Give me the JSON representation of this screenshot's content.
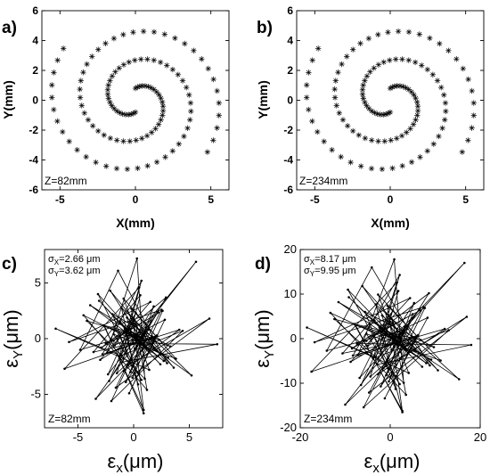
{
  "chart_data": [
    {
      "id": "a",
      "panel_label": "a)",
      "type": "scatter",
      "marker": "asterisk",
      "description": "double-arm spiral beam trajectory",
      "xlabel": "X(mm)",
      "ylabel": "Y(mm)",
      "xlim": [
        -6.2,
        6.2
      ],
      "ylim": [
        -6,
        6
      ],
      "xticks": [
        -5,
        0,
        5
      ],
      "yticks": [
        -6,
        -4,
        -2,
        0,
        2,
        4,
        6
      ],
      "annotation": "Z=82mm",
      "spiral": {
        "r_start": 0.8,
        "r_end": 5.9,
        "turns": 1.35,
        "points_per_arm": 58,
        "arms": 2
      }
    },
    {
      "id": "b",
      "panel_label": "b)",
      "type": "scatter",
      "marker": "asterisk",
      "description": "double-arm spiral beam trajectory",
      "xlabel": "X(mm)",
      "ylabel": "Y(mm)",
      "xlim": [
        -6.2,
        6.2
      ],
      "ylim": [
        -6,
        6
      ],
      "xticks": [
        -5,
        0,
        5
      ],
      "yticks": [
        -6,
        -4,
        -2,
        0,
        2,
        4,
        6
      ],
      "annotation": "Z=234mm",
      "spiral": {
        "r_start": 0.8,
        "r_end": 5.9,
        "turns": 1.35,
        "points_per_arm": 58,
        "arms": 2
      }
    },
    {
      "id": "c",
      "panel_label": "c)",
      "type": "line",
      "marker": "dot",
      "description": "random position error trace",
      "xlabel": "εx(μm)",
      "ylabel": "εY(μm)",
      "xlabel_main": "ε",
      "xlabel_sub": "x",
      "xlabel_unit": "(μm)",
      "ylabel_main": "ε",
      "ylabel_sub": "Y",
      "ylabel_unit": "(μm)",
      "xlim": [
        -8,
        8
      ],
      "ylim": [
        -8,
        8
      ],
      "xticks": [
        -5,
        0,
        5
      ],
      "yticks": [
        -5,
        0,
        5
      ],
      "sigma_x": "σX=2.66 μm",
      "sigma_y": "σY=3.62 μm",
      "sigma_x_main": "σ",
      "sigma_x_sub": "X",
      "sigma_x_value": "=2.66 μm",
      "sigma_y_main": "σ",
      "sigma_y_sub": "Y",
      "sigma_y_value": "=3.62 μm",
      "annotation": "Z=82mm",
      "n_points": 95,
      "x": [
        -1.2,
        2.4,
        -3.1,
        0.6,
        1.8,
        -2.2,
        -0.4,
        3.1,
        -4.5,
        1.2,
        0.2,
        -1.8,
        2.9,
        -0.9,
        4.1,
        -2.8,
        0.7,
        -1.5,
        1.9,
        -3.4,
        2.2,
        0.1,
        -0.6,
        3.6,
        -2.1,
        1.4,
        -0.2,
        5.2,
        -1.1,
        0.9,
        -2.6,
        1.6,
        -3.9,
        2.7,
        -0.8,
        0.4,
        -1.9,
        3.3,
        -4.2,
        1.0,
        0.3,
        -2.4,
        2.1,
        -0.5,
        6.8,
        -1.6,
        0.8,
        -3.0,
        1.5,
        -5.8,
        2.5,
        -0.3,
        1.1,
        -2.0,
        4.4,
        -1.3,
        0.5,
        -6.2,
        2.0,
        -0.7,
        1.7,
        -2.9,
        0.0,
        3.0,
        -1.4,
        -4.8,
        1.3,
        -0.1,
        2.6,
        -2.5,
        7.5,
        -1.0,
        0.6,
        -3.6,
        1.9,
        -0.4,
        2.8,
        -1.7,
        0.2,
        -2.3,
        5.6,
        -1.2,
        -7.0,
        1.4,
        -0.9,
        2.3,
        -2.7,
        0.9,
        -0.2,
        3.8,
        -1.8,
        0.7,
        -3.2,
        1.2,
        0.1
      ],
      "y": [
        1.5,
        -2.3,
        3.4,
        -0.6,
        2.9,
        -3.8,
        0.4,
        -1.7,
        2.1,
        -4.6,
        1.3,
        -0.2,
        3.7,
        -2.9,
        0.8,
        -1.4,
        5.2,
        -3.1,
        0.1,
        -5.4,
        2.4,
        -0.9,
        1.9,
        -2.6,
        4.3,
        -1.1,
        0.6,
        -3.3,
        2.8,
        -6.7,
        1.1,
        -0.5,
        3.0,
        -2.0,
        0.9,
        -4.1,
        2.2,
        -0.7,
        1.6,
        -3.6,
        7.2,
        -1.3,
        0.3,
        -2.4,
        1.8,
        -4.4,
        0.5,
        -1.9,
        3.3,
        -0.3,
        2.6,
        -3.0,
        1.0,
        -5.6,
        0.7,
        -1.6,
        4.6,
        -2.7,
        0.2,
        -3.9,
        2.0,
        -0.8,
        1.4,
        -2.2,
        6.1,
        -1.0,
        0.8,
        -3.5,
        2.5,
        -0.4,
        -0.5,
        -2.1,
        3.9,
        -1.2,
        0.0,
        -4.9,
        1.7,
        -0.6,
        2.3,
        -3.2,
        6.9,
        -1.5,
        0.9,
        -2.8,
        3.6,
        -0.1,
        1.2,
        -6.4,
        2.7,
        -1.8,
        0.4,
        -3.7,
        4.0,
        -0.9,
        1.6
      ]
    },
    {
      "id": "d",
      "panel_label": "d)",
      "type": "line",
      "marker": "dot",
      "description": "random position error trace",
      "xlabel": "εx(μm)",
      "ylabel": "εY(μm)",
      "xlabel_main": "ε",
      "xlabel_sub": "x",
      "xlabel_unit": "(μm)",
      "ylabel_main": "ε",
      "ylabel_sub": "Y",
      "ylabel_unit": "(μm)",
      "xlim": [
        -20,
        20
      ],
      "ylim": [
        -20,
        20
      ],
      "xticks": [
        -20,
        0,
        20
      ],
      "yticks": [
        -20,
        -10,
        0,
        10,
        20
      ],
      "sigma_x": "σX=8.17 μm",
      "sigma_y": "σY=9.95 μm",
      "sigma_x_main": "σ",
      "sigma_x_sub": "X",
      "sigma_x_value": "=8.17 μm",
      "sigma_y_main": "σ",
      "sigma_y_sub": "Y",
      "sigma_y_value": "=9.95 μm",
      "annotation": "Z=234mm",
      "n_points": 95,
      "x": [
        -3.5,
        7.1,
        -9.2,
        1.8,
        5.3,
        -6.5,
        -1.2,
        9.1,
        -13.3,
        3.5,
        0.6,
        -5.3,
        8.6,
        -2.7,
        12.1,
        -8.3,
        2.1,
        -4.4,
        5.6,
        -10.0,
        6.5,
        0.3,
        -1.8,
        10.6,
        -6.2,
        4.1,
        -0.6,
        15.3,
        -3.2,
        2.7,
        -7.7,
        4.7,
        -11.5,
        8.0,
        -2.4,
        1.2,
        -5.6,
        9.7,
        -12.4,
        3.0,
        0.9,
        -7.1,
        6.2,
        -1.5,
        17.0,
        -4.7,
        2.4,
        -8.8,
        4.4,
        -16.8,
        7.4,
        -0.9,
        3.2,
        -5.9,
        13.0,
        -3.8,
        1.5,
        -17.5,
        5.9,
        -2.1,
        5.0,
        -8.5,
        0.0,
        8.8,
        -4.1,
        -14.1,
        3.8,
        -0.3,
        7.7,
        -7.4,
        18.0,
        -2.9,
        1.8,
        -10.6,
        5.6,
        -1.2,
        8.3,
        -5.0,
        0.6,
        -6.8,
        16.5,
        -3.5,
        -18.5,
        4.1,
        -2.7,
        6.8,
        -8.0,
        2.7,
        -0.6,
        11.2,
        -5.3,
        2.1,
        -9.4,
        3.5,
        0.3
      ],
      "y": [
        4.1,
        -6.3,
        9.3,
        -1.6,
        8.0,
        -10.4,
        1.1,
        -4.7,
        5.8,
        -12.6,
        3.6,
        -0.5,
        10.2,
        -8.0,
        2.2,
        -3.8,
        14.3,
        -8.5,
        0.3,
        -14.8,
        6.6,
        -2.5,
        5.2,
        -7.1,
        11.8,
        -3.0,
        1.6,
        -9.1,
        7.7,
        -16.5,
        3.0,
        -1.4,
        8.2,
        -5.5,
        2.5,
        -11.3,
        6.0,
        -1.9,
        4.4,
        -9.9,
        17.8,
        -3.6,
        0.8,
        -6.6,
        4.9,
        -12.1,
        1.4,
        -5.2,
        9.1,
        -0.8,
        7.1,
        -8.2,
        2.7,
        -15.4,
        1.9,
        -4.4,
        12.6,
        -7.4,
        0.5,
        -10.7,
        5.5,
        -2.2,
        3.8,
        -6.0,
        16.0,
        -2.7,
        2.2,
        -9.6,
        6.9,
        -1.1,
        -1.4,
        -5.8,
        10.7,
        -3.3,
        0.0,
        -13.4,
        4.7,
        -1.6,
        6.3,
        -8.8,
        17.0,
        -4.1,
        2.5,
        -7.7,
        9.9,
        -0.3,
        3.3,
        -16.2,
        7.4,
        -4.9,
        1.1,
        -10.2,
        11.0,
        -2.5,
        4.4
      ]
    }
  ]
}
